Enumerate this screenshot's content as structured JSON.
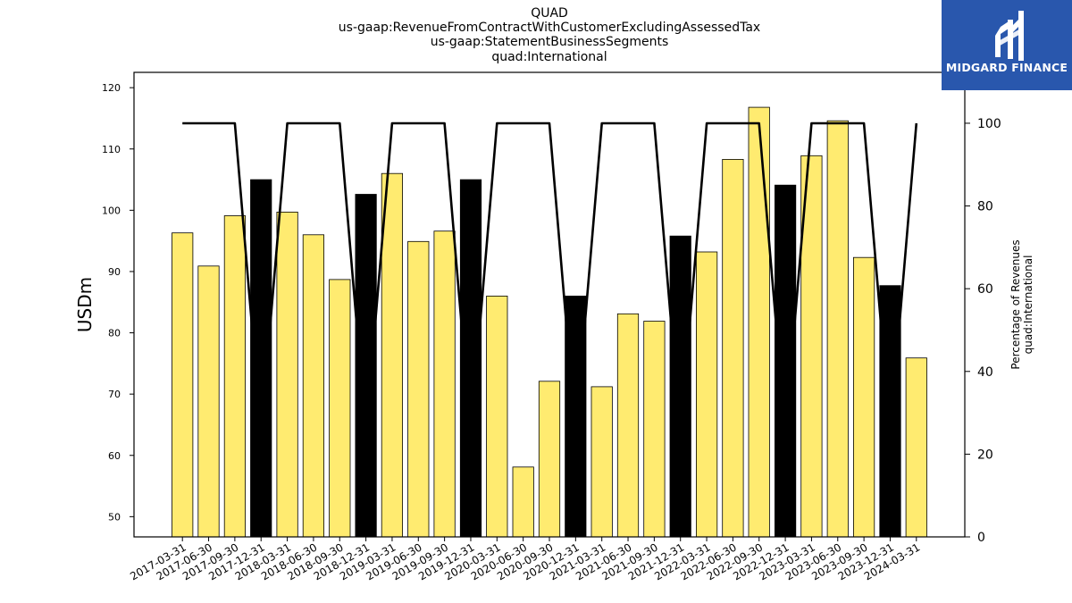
{
  "titles": {
    "line1": "QUAD",
    "line2": "us-gaap:RevenueFromContractWithCustomerExcludingAssessedTax",
    "line3": "us-gaap:StatementBusinessSegments",
    "line4": "quad:International"
  },
  "logo": {
    "text": "MIDGARD FINANCE",
    "bg": "#2957ad"
  },
  "chart_data": {
    "type": "bar",
    "ylabel": "USDm",
    "ylabel_right": [
      "Percentage of Revenues",
      "quad:International"
    ],
    "ylim": [
      46.7,
      122.5
    ],
    "y2lim": [
      0,
      112.3
    ],
    "yticks": [
      50,
      60,
      70,
      80,
      90,
      100,
      110,
      120
    ],
    "y2ticks": [
      0,
      20,
      40,
      60,
      80,
      100
    ],
    "categories": [
      "2017-03-31",
      "2017-06-30",
      "2017-09-30",
      "2017-12-31",
      "2018-03-31",
      "2018-06-30",
      "2018-09-30",
      "2018-12-31",
      "2019-03-31",
      "2019-06-30",
      "2019-09-30",
      "2019-12-31",
      "2020-03-31",
      "2020-06-30",
      "2020-09-30",
      "2020-12-31",
      "2021-03-31",
      "2021-06-30",
      "2021-09-30",
      "2021-12-31",
      "2022-03-31",
      "2022-06-30",
      "2022-09-30",
      "2022-12-31",
      "2023-03-31",
      "2023-06-30",
      "2023-09-30",
      "2023-12-31",
      "2024-03-31"
    ],
    "series": [
      {
        "values": [
          96.3,
          90.9,
          99.1,
          105.0,
          99.7,
          96.0,
          88.7,
          102.6,
          106.0,
          94.9,
          96.6,
          105.0,
          86.0,
          58.1,
          72.1,
          86.0,
          71.2,
          83.1,
          81.9,
          95.8,
          93.2,
          108.3,
          116.8,
          104.1,
          108.9,
          114.6,
          92.3,
          87.7,
          75.9
        ]
      },
      {
        "values": [
          100,
          100,
          100,
          25,
          100,
          100,
          100,
          25,
          100,
          100,
          100,
          25,
          100,
          100,
          100,
          25,
          100,
          100,
          100,
          25,
          100,
          100,
          100,
          25,
          100,
          100,
          100,
          25,
          100
        ]
      }
    ],
    "bar_colors": {
      "quarter": "#ffeb70",
      "year_end": "#000000"
    },
    "line_color": "#000000",
    "grid": false
  }
}
